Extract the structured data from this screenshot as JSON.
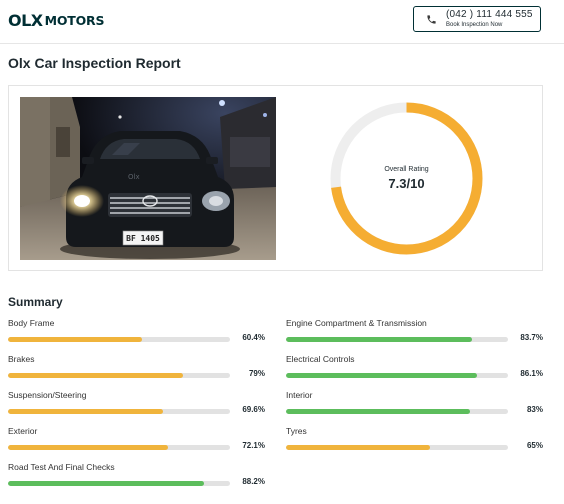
{
  "header": {
    "logo_mark": "OLX",
    "logo_text": "MOTORS",
    "phone_number": "(042 ) 111 444 555",
    "book_label": "Book Inspection Now"
  },
  "report": {
    "title": "Olx Car Inspection Report",
    "rating_label": "Overall Rating",
    "rating_value": "7.3/10",
    "rating_fraction": 0.73,
    "plate_text": "BF 1405",
    "hood_text": "Olx"
  },
  "summary": {
    "title": "Summary",
    "items": [
      {
        "label": "Body Frame",
        "value": "60.4%",
        "percent": 60.4,
        "color": "#f0b43c"
      },
      {
        "label": "Engine Compartment & Transmission",
        "value": "83.7%",
        "percent": 83.7,
        "color": "#5cbd5c"
      },
      {
        "label": "Brakes",
        "value": "79%",
        "percent": 79,
        "color": "#f0b43c"
      },
      {
        "label": "Electrical Controls",
        "value": "86.1%",
        "percent": 86.1,
        "color": "#5cbd5c"
      },
      {
        "label": "Suspension/Steering",
        "value": "69.6%",
        "percent": 69.6,
        "color": "#f0b43c"
      },
      {
        "label": "Interior",
        "value": "83%",
        "percent": 83,
        "color": "#5cbd5c"
      },
      {
        "label": "Exterior",
        "value": "72.1%",
        "percent": 72.1,
        "color": "#f0b43c"
      },
      {
        "label": "Tyres",
        "value": "65%",
        "percent": 65,
        "color": "#f0b43c"
      },
      {
        "label": "Road Test And Final Checks",
        "value": "88.2%",
        "percent": 88.2,
        "color": "#5cbd5c"
      }
    ]
  },
  "colors": {
    "brand": "#002f34",
    "rating_ring": "#f5ad32",
    "ring_track": "#eeeeee"
  },
  "icons": {
    "phone": "phone-icon"
  }
}
